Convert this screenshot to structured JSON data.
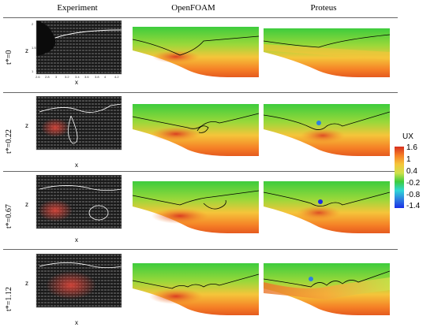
{
  "columns": [
    "Experiment",
    "OpenFOAM",
    "Proteus"
  ],
  "rows": [
    "t*=0",
    "t*=0.22",
    "t*=0.67",
    "t*=1.12"
  ],
  "axes": {
    "xlabel": "x",
    "ylabel": "z",
    "x_ticks": [
      "2.6",
      "2.8",
      "3",
      "3.2",
      "3.4",
      "3.6",
      "3.8",
      "4",
      "4.2"
    ],
    "z_ticks": [
      "2",
      "1.5",
      "1"
    ]
  },
  "colorbar": {
    "title": "UX",
    "ticks": [
      "1.6",
      "1",
      "0.4",
      "-0.2",
      "-0.8",
      "-1.4"
    ],
    "colors": [
      "#d7301f",
      "#f57f26",
      "#f5c53a",
      "#cfe14b",
      "#3dcc3d",
      "#2fd7d7",
      "#2e7fe0",
      "#1a2fe6"
    ]
  }
}
